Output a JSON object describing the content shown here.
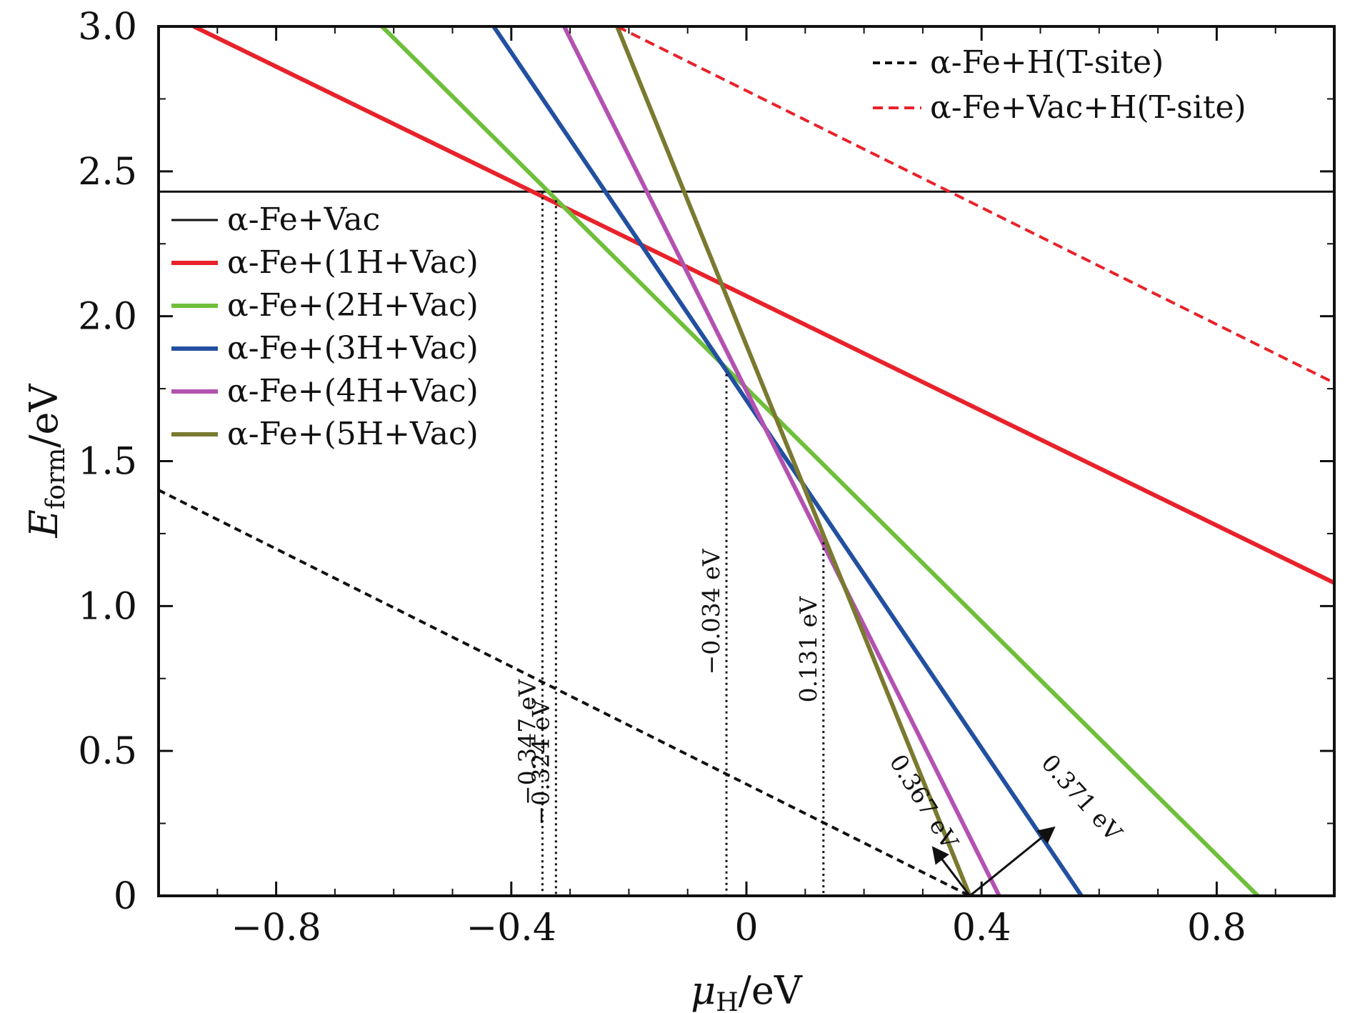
{
  "chart_data": {
    "type": "line",
    "xlabel": "μH/eV",
    "xlabel_main": "μ",
    "xlabel_sub": "H",
    "xlabel_unit": "/eV",
    "ylabel": "Eform/eV",
    "ylabel_main": "E",
    "ylabel_sub": "form",
    "ylabel_unit": "/eV",
    "xlim": [
      -1.0,
      1.0
    ],
    "ylim": [
      0,
      3.0
    ],
    "x_ticks": [
      -0.8,
      -0.4,
      0,
      0.4,
      0.8
    ],
    "x_tick_labels": [
      "−0.8",
      "−0.4",
      "0",
      "0.4",
      "0.8"
    ],
    "y_ticks": [
      0,
      0.5,
      1.0,
      1.5,
      2.0,
      2.5,
      3.0
    ],
    "y_tick_labels": [
      "0",
      "0.5",
      "1.0",
      "1.5",
      "2.0",
      "2.5",
      "3.0"
    ],
    "grid": false,
    "series": [
      {
        "name": "α-Fe+Vac",
        "color": "#111111",
        "dash": "solid",
        "legend": "left",
        "x": [
          -1.0,
          1.0
        ],
        "y": [
          2.43,
          2.43
        ]
      },
      {
        "name": "α-Fe+(1H+Vac)",
        "color": "#e8222a",
        "dash": "solid",
        "legend": "left",
        "x": [
          -0.94,
          1.0
        ],
        "y": [
          3.0,
          1.08
        ]
      },
      {
        "name": "α-Fe+(2H+Vac)",
        "color": "#6fbf3a",
        "dash": "solid",
        "legend": "left",
        "x": [
          -0.62,
          0.87
        ],
        "y": [
          3.0,
          0.0
        ]
      },
      {
        "name": "α-Fe+(3H+Vac)",
        "color": "#2250a0",
        "dash": "solid",
        "legend": "left",
        "x": [
          -0.43,
          0.57
        ],
        "y": [
          3.0,
          0.0
        ]
      },
      {
        "name": "α-Fe+(4H+Vac)",
        "color": "#b352b0",
        "dash": "solid",
        "legend": "left",
        "x": [
          -0.31,
          0.43
        ],
        "y": [
          3.0,
          0.0
        ]
      },
      {
        "name": "α-Fe+(5H+Vac)",
        "color": "#7a7a30",
        "dash": "solid",
        "legend": "left",
        "x": [
          -0.22,
          0.38
        ],
        "y": [
          3.0,
          0.0
        ]
      },
      {
        "name": "α-Fe+H(T-site)",
        "color": "#111111",
        "dash": "dashed",
        "legend": "right",
        "x": [
          -1.0,
          0.38
        ],
        "y": [
          1.4,
          0.0
        ]
      },
      {
        "name": "α-Fe+Vac+H(T-site)",
        "color": "#e8222a",
        "dash": "dashed",
        "legend": "right",
        "x": [
          -0.22,
          1.0
        ],
        "y": [
          3.0,
          1.77
        ]
      }
    ],
    "vlines": [
      {
        "x": -0.347,
        "y_top": 2.43,
        "label": "−0.347 eV",
        "label_y": 0.53
      },
      {
        "x": -0.324,
        "y_top": 2.4,
        "label": "−0.324 eV",
        "label_y": 0.46
      },
      {
        "x": -0.034,
        "y_top": 1.8,
        "label": "−0.034 eV",
        "label_y": 0.98
      },
      {
        "x": 0.131,
        "y_top": 1.22,
        "label": "0.131 eV",
        "label_y": 0.85
      }
    ],
    "annotations": [
      {
        "text": "0.367 eV",
        "x": 0.29,
        "y": 0.31,
        "angle": 58
      },
      {
        "text": "0.371 eV",
        "x": 0.56,
        "y": 0.32,
        "angle": 48
      }
    ],
    "arrows": [
      {
        "from": [
          0.38,
          0.0
        ],
        "to": [
          0.32,
          0.16
        ]
      },
      {
        "from": [
          0.38,
          0.0
        ],
        "to": [
          0.52,
          0.23
        ]
      }
    ]
  }
}
